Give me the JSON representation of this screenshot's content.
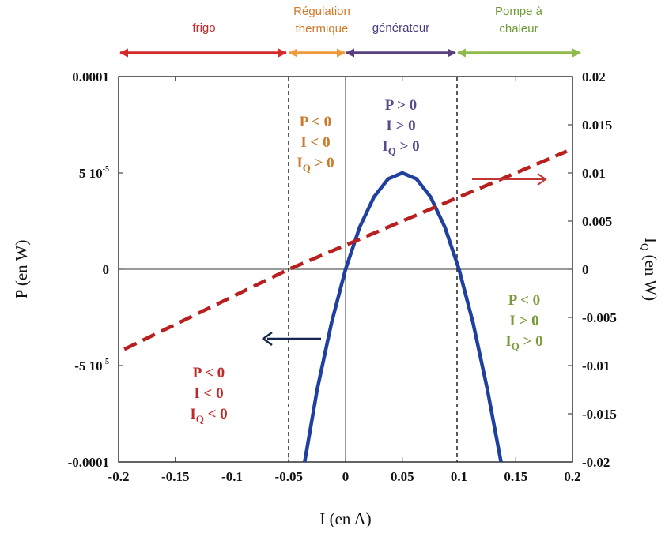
{
  "chart_data": {
    "type": "line",
    "xlabel": "I (en A)",
    "ylabel_left": "P (en W)",
    "ylabel_right_main": "I",
    "ylabel_right_sub": "Q",
    "ylabel_right_tail": " (en W)",
    "xlim": [
      -0.2,
      0.2
    ],
    "ylim_left": [
      -0.0001,
      0.0001
    ],
    "ylim_right": [
      -0.02,
      0.02
    ],
    "x_ticks": [
      {
        "value": -0.2,
        "label": "-0.2"
      },
      {
        "value": -0.15,
        "label": "-0.15"
      },
      {
        "value": -0.1,
        "label": "-0.1"
      },
      {
        "value": -0.05,
        "label": "-0.05"
      },
      {
        "value": 0,
        "label": "0"
      },
      {
        "value": 0.05,
        "label": "0.05"
      },
      {
        "value": 0.1,
        "label": "0.1"
      },
      {
        "value": 0.15,
        "label": "0.15"
      },
      {
        "value": 0.2,
        "label": "0.2"
      }
    ],
    "y_left_ticks": [
      {
        "value": 0.0001,
        "label": "0.0001"
      },
      {
        "value": 5e-05,
        "label": "5 10",
        "exp": "-5"
      },
      {
        "value": 0,
        "label": "0"
      },
      {
        "value": -5e-05,
        "label": "-5 10",
        "exp": "-5"
      },
      {
        "value": -0.0001,
        "label": "-0.0001"
      }
    ],
    "y_right_ticks": [
      {
        "value": 0.02,
        "label": "0.02"
      },
      {
        "value": 0.015,
        "label": "0.015"
      },
      {
        "value": 0.01,
        "label": "0.01"
      },
      {
        "value": 0.005,
        "label": "0.005"
      },
      {
        "value": 0,
        "label": "0"
      },
      {
        "value": -0.005,
        "label": "-0.005"
      },
      {
        "value": -0.01,
        "label": "-0.01"
      },
      {
        "value": -0.015,
        "label": "-0.015"
      },
      {
        "value": -0.02,
        "label": "-0.02"
      }
    ],
    "series": [
      {
        "axis": "left",
        "style": "solid",
        "color": "#2040a0",
        "x": [
          -0.036,
          -0.025,
          -0.0125,
          0,
          0.0125,
          0.025,
          0.0375,
          0.05,
          0.0625,
          0.075,
          0.0875,
          0.1,
          0.1125,
          0.125,
          0.137
        ],
        "y": [
          -0.0001,
          -6.25e-05,
          -2.81e-05,
          0,
          2.19e-05,
          3.75e-05,
          4.69e-05,
          5e-05,
          4.69e-05,
          3.75e-05,
          2.19e-05,
          0,
          -2.81e-05,
          -6.25e-05,
          -0.0001
        ]
      },
      {
        "axis": "right",
        "style": "dashed",
        "color": "#b82020",
        "x": [
          -0.195,
          -0.05,
          0,
          0.1,
          0.195
        ],
        "y": [
          -0.0083,
          0,
          0.0025,
          0.0075,
          0.01225
        ]
      }
    ],
    "dashed_verticals": [
      -0.05,
      0.1
    ],
    "regions": [
      {
        "label": "frigo",
        "color": "#d42a2a",
        "from": -0.2,
        "to": -0.05
      },
      {
        "label": "Régulation thermique",
        "color": "#f0983a",
        "from": -0.05,
        "to": 0
      },
      {
        "label": "générateur",
        "color": "#5a3f80",
        "from": 0,
        "to": 0.1
      },
      {
        "label": "Pompe à chaleur",
        "color": "#8dba4a",
        "from": 0.1,
        "to": 0.2
      }
    ],
    "condition_blocks": [
      {
        "color": "#c97a2c",
        "lines": [
          {
            "a": "P < 0"
          },
          {
            "a": "I < 0"
          },
          {
            "a": "I",
            "sub": "Q",
            "b": " > 0"
          }
        ]
      },
      {
        "color": "#5a4a8a",
        "lines": [
          {
            "a": "P > 0"
          },
          {
            "a": "I > 0"
          },
          {
            "a": "I",
            "sub": "Q",
            "b": " > 0"
          }
        ]
      },
      {
        "color": "#7a9a3a",
        "lines": [
          {
            "a": "P < 0"
          },
          {
            "a": "I > 0"
          },
          {
            "a": "I",
            "sub": "Q",
            "b": " > 0"
          }
        ]
      },
      {
        "color": "#c02828",
        "lines": [
          {
            "a": "P < 0"
          },
          {
            "a": "I < 0"
          },
          {
            "a": "I",
            "sub": "Q",
            "b": " < 0"
          }
        ]
      }
    ],
    "arrows": [
      {
        "points_to": "left-axis",
        "color": "#16264e"
      },
      {
        "points_to": "right-axis",
        "color": "#c23535"
      }
    ]
  }
}
